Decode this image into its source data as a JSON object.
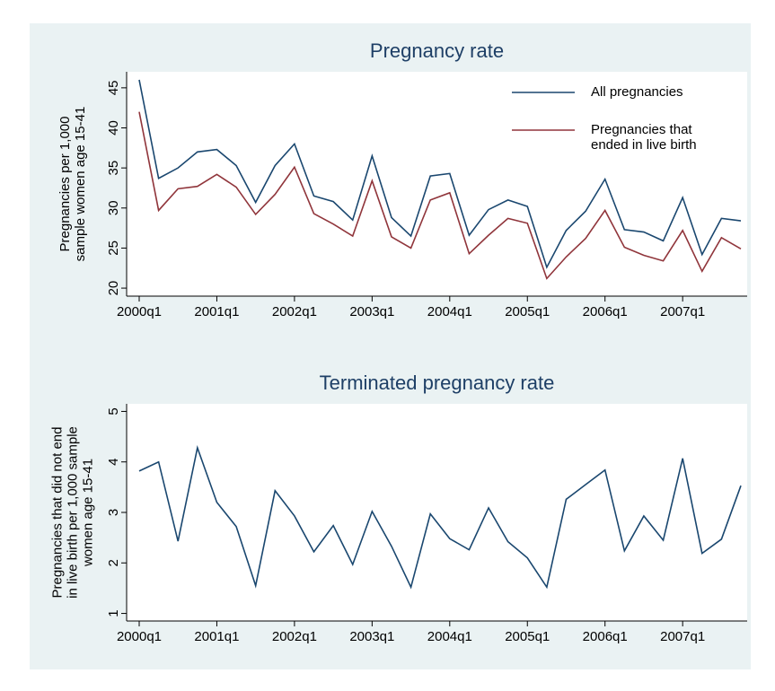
{
  "chart_data": [
    {
      "type": "line",
      "title": "Pregnancy rate",
      "y_label": "Pregnancies per 1,000 sample women age 15-41",
      "categories": [
        "2000q1",
        null,
        null,
        null,
        "2001q1",
        null,
        null,
        null,
        "2002q1",
        null,
        null,
        null,
        "2003q1",
        null,
        null,
        null,
        "2004q1",
        null,
        null,
        null,
        "2005q1",
        null,
        null,
        null,
        "2006q1",
        null,
        null,
        null,
        "2007q1",
        null,
        null,
        null
      ],
      "series": [
        {
          "name": "All pregnancies",
          "color": "#1a476f",
          "values": [
            46,
            33.7,
            35,
            37,
            37.3,
            35.3,
            30.7,
            35.3,
            38,
            31.5,
            30.8,
            28.5,
            36.5,
            28.8,
            26.5,
            34,
            34.3,
            26.6,
            29.8,
            31,
            30.2,
            22.6,
            27.2,
            29.6,
            33.6,
            27.3,
            27,
            25.9,
            31.3,
            24.2,
            28.7,
            28.4
          ]
        },
        {
          "name": "Pregnancies that ended in live birth",
          "color": "#90353b",
          "values": [
            42,
            29.7,
            32.4,
            32.7,
            34.2,
            32.6,
            29.2,
            31.7,
            35.1,
            29.3,
            28,
            26.5,
            33.4,
            26.4,
            25,
            31,
            31.9,
            24.3,
            26.6,
            28.7,
            28.1,
            21.2,
            23.9,
            26.2,
            29.7,
            25.1,
            24.1,
            23.4,
            27.2,
            22.1,
            26.3,
            24.9
          ]
        }
      ],
      "ylim": [
        19,
        47
      ],
      "yticks": [
        20,
        25,
        30,
        35,
        40,
        45
      ],
      "grid": false,
      "legend": "top-right"
    },
    {
      "type": "line",
      "title": "Terminated pregnancy rate",
      "y_label": "Pregnancies that did not end in live birth per 1,000 sample women age 15-41",
      "categories": [
        "2000q1",
        null,
        null,
        null,
        "2001q1",
        null,
        null,
        null,
        "2002q1",
        null,
        null,
        null,
        "2003q1",
        null,
        null,
        null,
        "2004q1",
        null,
        null,
        null,
        "2005q1",
        null,
        null,
        null,
        "2006q1",
        null,
        null,
        null,
        "2007q1",
        null,
        null,
        null
      ],
      "series": [
        {
          "color": "#1a476f",
          "values": [
            3.82,
            4.0,
            2.43,
            4.28,
            3.2,
            2.72,
            1.55,
            3.43,
            2.93,
            2.22,
            2.74,
            1.97,
            3.02,
            2.33,
            1.52,
            2.97,
            2.48,
            2.26,
            3.09,
            2.42,
            2.1,
            1.52,
            3.26,
            3.55,
            3.84,
            2.24,
            2.93,
            2.45,
            4.07,
            2.19,
            2.47,
            3.53
          ]
        }
      ],
      "ylim": [
        0.85,
        5.15
      ],
      "yticks": [
        1,
        2,
        3,
        4,
        5
      ],
      "grid": false
    }
  ]
}
